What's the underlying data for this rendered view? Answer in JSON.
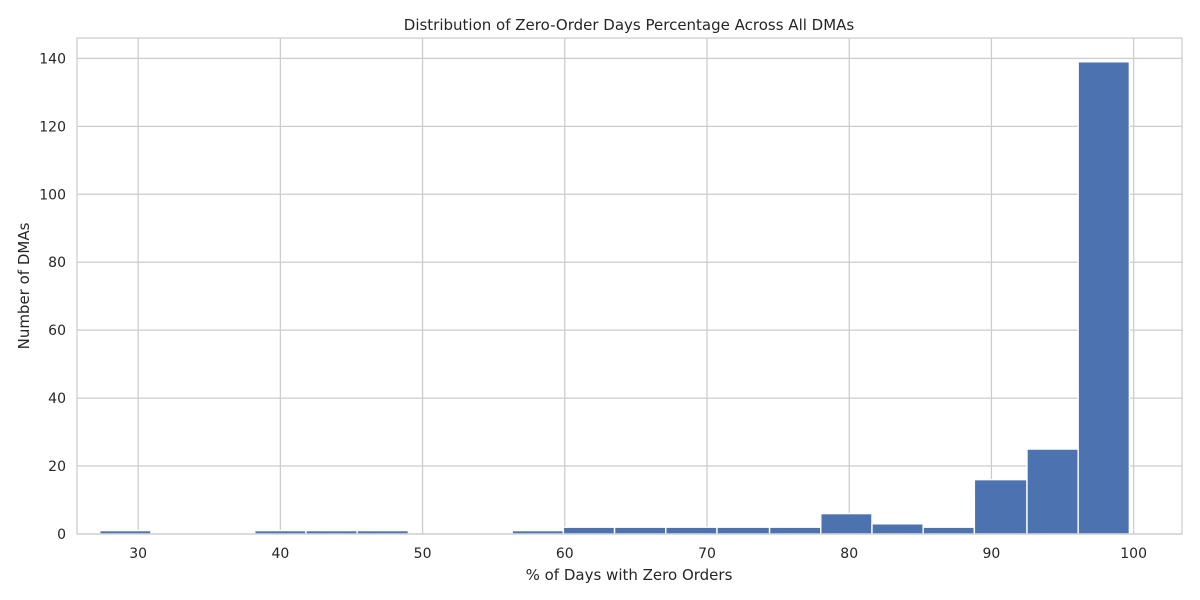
{
  "chart_data": {
    "type": "bar",
    "title": "Distribution of Zero-Order Days Percentage Across All DMAs",
    "xlabel": "% of Days with Zero Orders",
    "ylabel": "Number of DMAs",
    "xlim": [
      25.7,
      103.4
    ],
    "ylim": [
      0,
      146
    ],
    "xticks": [
      30,
      40,
      50,
      60,
      70,
      80,
      90,
      100
    ],
    "yticks": [
      0,
      20,
      40,
      60,
      80,
      100,
      120,
      140
    ],
    "grid": true,
    "bins": [
      {
        "x0": 27.3,
        "x1": 30.9,
        "count": 1
      },
      {
        "x0": 30.9,
        "x1": 34.5,
        "count": 0
      },
      {
        "x0": 34.5,
        "x1": 38.2,
        "count": 0
      },
      {
        "x0": 38.2,
        "x1": 41.8,
        "count": 1
      },
      {
        "x0": 41.8,
        "x1": 45.4,
        "count": 1
      },
      {
        "x0": 45.4,
        "x1": 49.0,
        "count": 1
      },
      {
        "x0": 49.0,
        "x1": 52.6,
        "count": 0
      },
      {
        "x0": 52.6,
        "x1": 56.3,
        "count": 0
      },
      {
        "x0": 56.3,
        "x1": 59.9,
        "count": 1
      },
      {
        "x0": 59.9,
        "x1": 63.5,
        "count": 2
      },
      {
        "x0": 63.5,
        "x1": 67.1,
        "count": 2
      },
      {
        "x0": 67.1,
        "x1": 70.7,
        "count": 2
      },
      {
        "x0": 70.7,
        "x1": 74.4,
        "count": 2
      },
      {
        "x0": 74.4,
        "x1": 78.0,
        "count": 2
      },
      {
        "x0": 78.0,
        "x1": 81.6,
        "count": 6
      },
      {
        "x0": 81.6,
        "x1": 85.2,
        "count": 3
      },
      {
        "x0": 85.2,
        "x1": 88.8,
        "count": 2
      },
      {
        "x0": 88.8,
        "x1": 92.5,
        "count": 16
      },
      {
        "x0": 92.5,
        "x1": 96.1,
        "count": 25
      },
      {
        "x0": 96.1,
        "x1": 99.7,
        "count": 139
      }
    ],
    "bar_color": "#4c72b0",
    "grid_color": "#cccccc"
  }
}
